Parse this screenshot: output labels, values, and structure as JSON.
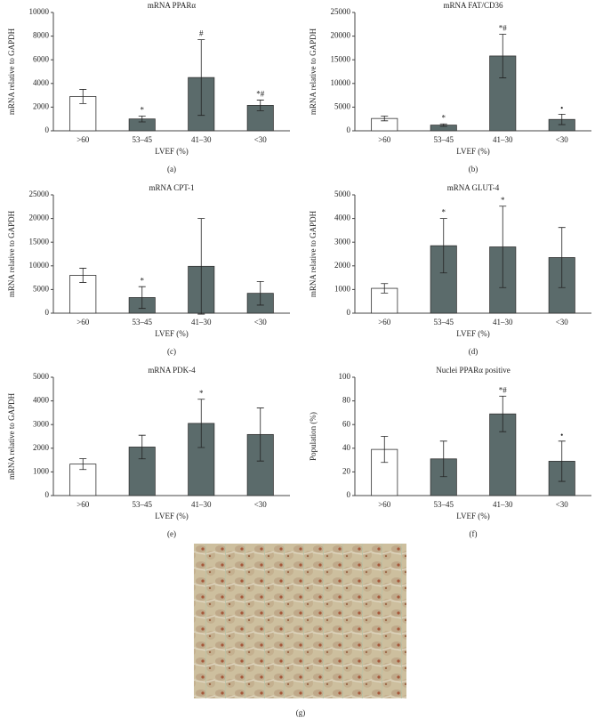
{
  "chart_data": [
    {
      "type": "bar",
      "panel": "(a)",
      "title": "mRNA PPARα",
      "ylabel": "mRNA relative to GAPDH",
      "xlabel": "LVEF (%)",
      "categories": [
        ">60",
        "53–45",
        "41–30",
        "<30"
      ],
      "values": [
        2900,
        1000,
        4500,
        2150
      ],
      "errors": [
        600,
        250,
        3200,
        450
      ],
      "annotations": [
        null,
        "*",
        "#",
        "*#"
      ],
      "colors": [
        "#ffffff",
        "#5b6b6b",
        "#5b6b6b",
        "#5b6b6b"
      ],
      "ylim": [
        0,
        10000
      ],
      "yticks": [
        0,
        2000,
        4000,
        6000,
        8000,
        10000
      ]
    },
    {
      "type": "bar",
      "panel": "(b)",
      "title": "mRNA FAT/CD36",
      "ylabel": "mRNA relative to GAPDH",
      "xlabel": "LVEF (%)",
      "categories": [
        ">60",
        "53–45",
        "41–30",
        "<30"
      ],
      "values": [
        2600,
        1200,
        15800,
        2400
      ],
      "errors": [
        500,
        250,
        4600,
        1100
      ],
      "annotations": [
        null,
        "*",
        "*#",
        "•"
      ],
      "colors": [
        "#ffffff",
        "#5b6b6b",
        "#5b6b6b",
        "#5b6b6b"
      ],
      "ylim": [
        0,
        25000
      ],
      "yticks": [
        0,
        5000,
        10000,
        15000,
        20000,
        25000
      ]
    },
    {
      "type": "bar",
      "panel": "(c)",
      "title": "mRNA CPT-1",
      "ylabel": "mRNA relative to GAPDH",
      "xlabel": "LVEF (%)",
      "categories": [
        ">60",
        "53–45",
        "41–30",
        "<30"
      ],
      "values": [
        8000,
        3300,
        9900,
        4200
      ],
      "errors": [
        1500,
        2300,
        10100,
        2500
      ],
      "annotations": [
        null,
        "*",
        null,
        null
      ],
      "colors": [
        "#ffffff",
        "#5b6b6b",
        "#5b6b6b",
        "#5b6b6b"
      ],
      "ylim": [
        0,
        25000
      ],
      "yticks": [
        0,
        5000,
        10000,
        15000,
        20000,
        25000
      ]
    },
    {
      "type": "bar",
      "panel": "(d)",
      "title": "mRNA GLUT-4",
      "ylabel": "mRNA relative to GAPDH",
      "xlabel": "LVEF (%)",
      "categories": [
        ">60",
        "53–45",
        "41–30",
        "<30"
      ],
      "values": [
        1050,
        2850,
        2800,
        2350
      ],
      "errors": [
        200,
        1150,
        1720,
        1270
      ],
      "annotations": [
        null,
        "*",
        "*",
        null
      ],
      "colors": [
        "#ffffff",
        "#5b6b6b",
        "#5b6b6b",
        "#5b6b6b"
      ],
      "ylim": [
        0,
        5000
      ],
      "yticks": [
        0,
        1000,
        2000,
        3000,
        4000,
        5000
      ]
    },
    {
      "type": "bar",
      "panel": "(e)",
      "title": "mRNA PDK-4",
      "ylabel": "mRNA relative to GAPDH",
      "xlabel": "LVEF (%)",
      "categories": [
        ">60",
        "53–45",
        "41–30",
        "<30"
      ],
      "values": [
        1330,
        2050,
        3050,
        2580
      ],
      "errors": [
        230,
        500,
        1020,
        1120
      ],
      "annotations": [
        null,
        null,
        "*",
        null
      ],
      "colors": [
        "#ffffff",
        "#5b6b6b",
        "#5b6b6b",
        "#5b6b6b"
      ],
      "ylim": [
        0,
        5000
      ],
      "yticks": [
        0,
        1000,
        2000,
        3000,
        4000,
        5000
      ]
    },
    {
      "type": "bar",
      "panel": "(f)",
      "title": "Nuclei PPARα positive",
      "ylabel": "Population (%)",
      "xlabel": "LVEF (%)",
      "categories": [
        ">60",
        "53–45",
        "41–30",
        "<30"
      ],
      "values": [
        39,
        31,
        69,
        29
      ],
      "errors": [
        11,
        15,
        15,
        17
      ],
      "annotations": [
        null,
        null,
        "*#",
        "•"
      ],
      "colors": [
        "#ffffff",
        "#5b6b6b",
        "#5b6b6b",
        "#5b6b6b"
      ],
      "ylim": [
        0,
        100
      ],
      "yticks": [
        0,
        20,
        40,
        60,
        80,
        100
      ]
    }
  ],
  "micrograph": {
    "label": "(g)"
  }
}
